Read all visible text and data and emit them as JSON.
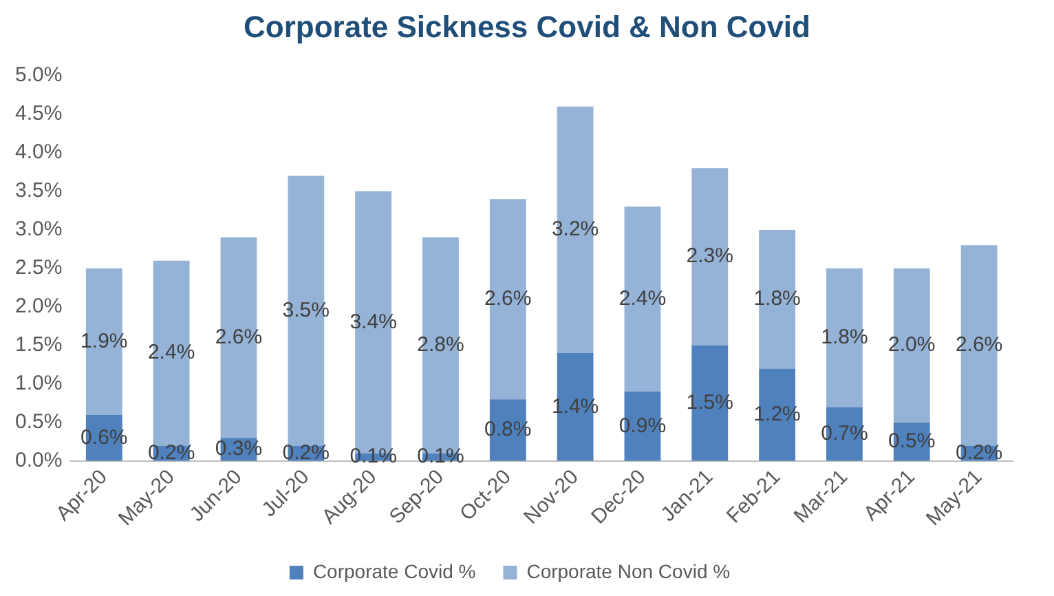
{
  "chart_data": {
    "type": "bar",
    "title": "Corporate Sickness Covid & Non Covid",
    "stacked": true,
    "grid": false,
    "legend": "bottom",
    "categories": [
      "Apr-20",
      "May-20",
      "Jun-20",
      "Jul-20",
      "Aug-20",
      "Sep-20",
      "Oct-20",
      "Nov-20",
      "Dec-20",
      "Jan-21",
      "Feb-21",
      "Mar-21",
      "Apr-21",
      "May-21"
    ],
    "ylim": [
      0,
      5
    ],
    "yticks": [
      {
        "value": 0,
        "label": "0.0%"
      },
      {
        "value": 0.5,
        "label": "0.5%"
      },
      {
        "value": 1,
        "label": "1.0%"
      },
      {
        "value": 1.5,
        "label": "1.5%"
      },
      {
        "value": 2,
        "label": "2.0%"
      },
      {
        "value": 2.5,
        "label": "2.5%"
      },
      {
        "value": 3,
        "label": "3.0%"
      },
      {
        "value": 3.5,
        "label": "3.5%"
      },
      {
        "value": 4,
        "label": "4.0%"
      },
      {
        "value": 4.5,
        "label": "4.5%"
      },
      {
        "value": 5,
        "label": "5.0%"
      }
    ],
    "series": [
      {
        "name": "Corporate Covid %",
        "color": "#4f81bd",
        "values": [
          0.6,
          0.2,
          0.3,
          0.2,
          0.1,
          0.1,
          0.8,
          1.4,
          0.9,
          1.5,
          1.2,
          0.7,
          0.5,
          0.2
        ],
        "value_labels": [
          "0.6%",
          "0.2%",
          "0.3%",
          "0.2%",
          "0.1%",
          "0.1%",
          "0.8%",
          "1.4%",
          "0.9%",
          "1.5%",
          "1.2%",
          "0.7%",
          "0.5%",
          "0.2%"
        ]
      },
      {
        "name": "Corporate Non Covid %",
        "color": "#95b3d7",
        "values": [
          1.9,
          2.4,
          2.6,
          3.5,
          3.4,
          2.8,
          2.6,
          3.2,
          2.4,
          2.3,
          1.8,
          1.8,
          2.0,
          2.6
        ],
        "value_labels": [
          "1.9%",
          "2.4%",
          "2.6%",
          "3.5%",
          "3.4%",
          "2.8%",
          "2.6%",
          "3.2%",
          "2.4%",
          "2.3%",
          "1.8%",
          "1.8%",
          "2.0%",
          "2.6%"
        ]
      }
    ]
  }
}
